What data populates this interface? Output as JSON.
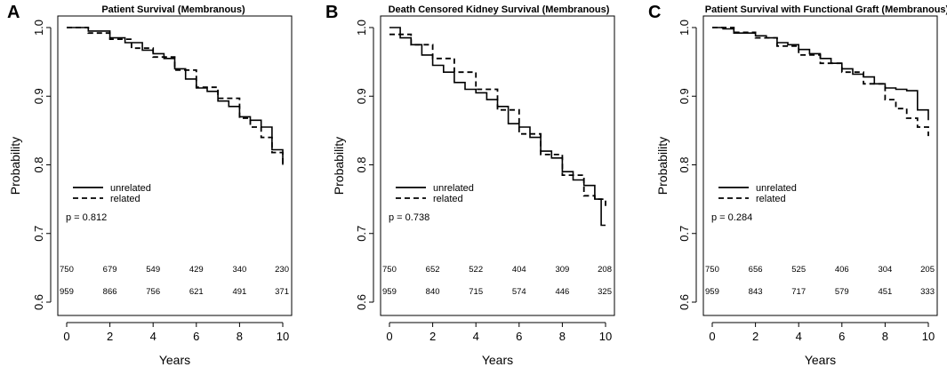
{
  "chart_data": [
    {
      "type": "line",
      "panel_label": "A",
      "title": "Patient Survival (Membranous)",
      "xlabel": "Years",
      "ylabel": "Probability",
      "xlim": [
        0,
        10
      ],
      "ylim": [
        0.6,
        1.0
      ],
      "xticks": [
        "0",
        "2",
        "4",
        "6",
        "8",
        "10"
      ],
      "yticks": [
        "0.6",
        "0.7",
        "0.8",
        "0.9",
        "1.0"
      ],
      "legend": {
        "position": "middle-left",
        "entries": [
          "unrelated",
          "related"
        ]
      },
      "p_value": "p = 0.812",
      "series": [
        {
          "name": "unrelated",
          "style": "solid",
          "x": [
            0,
            1,
            2,
            2.7,
            3.5,
            4,
            4.5,
            5,
            5.5,
            6,
            6.5,
            7,
            7.5,
            8,
            8.5,
            9,
            9.5,
            10
          ],
          "y": [
            1.0,
            0.995,
            0.985,
            0.978,
            0.967,
            0.962,
            0.955,
            0.94,
            0.925,
            0.912,
            0.907,
            0.893,
            0.885,
            0.87,
            0.865,
            0.855,
            0.822,
            0.8
          ]
        },
        {
          "name": "related",
          "style": "dashed",
          "x": [
            0,
            1,
            2,
            3,
            4,
            5,
            6,
            7,
            8,
            8.5,
            9,
            9.5,
            10
          ],
          "y": [
            1.0,
            0.992,
            0.983,
            0.97,
            0.957,
            0.938,
            0.913,
            0.897,
            0.868,
            0.855,
            0.84,
            0.818,
            0.8
          ]
        }
      ],
      "at_risk": [
        {
          "name": "unrelated",
          "values": [
            "750",
            "679",
            "549",
            "429",
            "340",
            "230"
          ]
        },
        {
          "name": "related",
          "values": [
            "959",
            "866",
            "756",
            "621",
            "491",
            "371"
          ]
        }
      ]
    },
    {
      "type": "line",
      "panel_label": "B",
      "title": "Death Censored Kidney Survival (Membranous)",
      "xlabel": "Years",
      "ylabel": "Probability",
      "xlim": [
        0,
        10
      ],
      "ylim": [
        0.6,
        1.0
      ],
      "xticks": [
        "0",
        "2",
        "4",
        "6",
        "8",
        "10"
      ],
      "yticks": [
        "0.6",
        "0.7",
        "0.8",
        "0.9",
        "1.0"
      ],
      "legend": {
        "position": "middle-right",
        "entries": [
          "unrelated",
          "related"
        ]
      },
      "p_value": "p = 0.738",
      "series": [
        {
          "name": "unrelated",
          "style": "solid",
          "x": [
            0,
            0.5,
            1,
            1.5,
            2,
            2.5,
            3,
            3.5,
            4,
            4.5,
            5,
            5.5,
            6,
            6.5,
            7,
            7.5,
            8,
            8.5,
            9,
            9.5,
            9.8,
            10
          ],
          "y": [
            1.0,
            0.985,
            0.975,
            0.96,
            0.945,
            0.935,
            0.92,
            0.91,
            0.905,
            0.895,
            0.885,
            0.86,
            0.855,
            0.84,
            0.82,
            0.81,
            0.79,
            0.778,
            0.77,
            0.75,
            0.712,
            0.712
          ]
        },
        {
          "name": "related",
          "style": "dashed",
          "x": [
            0,
            1,
            2,
            3,
            4,
            5,
            6,
            7,
            8,
            9,
            9.5,
            10
          ],
          "y": [
            0.99,
            0.975,
            0.955,
            0.935,
            0.91,
            0.88,
            0.845,
            0.815,
            0.785,
            0.755,
            0.75,
            0.735
          ]
        }
      ],
      "at_risk": [
        {
          "name": "unrelated",
          "values": [
            "750",
            "652",
            "522",
            "404",
            "309",
            "208"
          ]
        },
        {
          "name": "related",
          "values": [
            "959",
            "840",
            "715",
            "574",
            "446",
            "325"
          ]
        }
      ]
    },
    {
      "type": "line",
      "panel_label": "C",
      "title": "Patient Survival with Functional Graft (Membranous)",
      "xlabel": "Years",
      "ylabel": "Probability",
      "xlim": [
        0,
        10
      ],
      "ylim": [
        0.6,
        1.0
      ],
      "xticks": [
        "0",
        "2",
        "4",
        "6",
        "8",
        "10"
      ],
      "yticks": [
        "0.6",
        "0.7",
        "0.8",
        "0.9",
        "1.0"
      ],
      "legend": {
        "position": "middle-right",
        "entries": [
          "unrelated",
          "related"
        ]
      },
      "p_value": "p = 0.284",
      "series": [
        {
          "name": "unrelated",
          "style": "solid",
          "x": [
            0,
            0.5,
            1,
            2,
            2.5,
            3,
            3.5,
            4,
            4.5,
            5,
            5.5,
            6,
            6.5,
            7,
            7.5,
            8,
            8.5,
            9,
            9.5,
            10
          ],
          "y": [
            1.0,
            0.998,
            0.992,
            0.988,
            0.985,
            0.978,
            0.975,
            0.968,
            0.962,
            0.955,
            0.948,
            0.94,
            0.932,
            0.928,
            0.918,
            0.912,
            0.91,
            0.908,
            0.88,
            0.865
          ]
        },
        {
          "name": "related",
          "style": "dashed",
          "x": [
            0,
            1,
            2,
            3,
            4,
            5,
            6,
            7,
            8,
            8.5,
            9,
            9.5,
            10
          ],
          "y": [
            1.0,
            0.993,
            0.985,
            0.973,
            0.96,
            0.948,
            0.935,
            0.918,
            0.895,
            0.882,
            0.868,
            0.855,
            0.842
          ]
        }
      ],
      "at_risk": [
        {
          "name": "unrelated",
          "values": [
            "750",
            "656",
            "525",
            "406",
            "304",
            "205"
          ]
        },
        {
          "name": "related",
          "values": [
            "959",
            "843",
            "717",
            "579",
            "451",
            "333"
          ]
        }
      ]
    }
  ]
}
